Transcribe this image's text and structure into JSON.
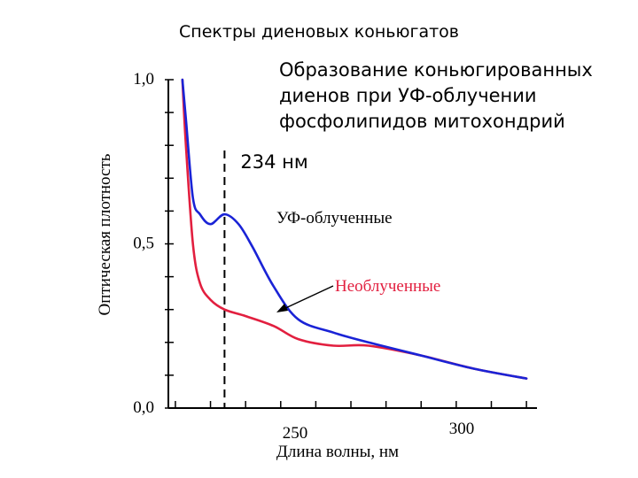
{
  "chart_data": {
    "type": "line",
    "title": "Спектры диеновых коньюгатов",
    "subtitle_lines": [
      "Образование коньюгированных",
      "диенов при УФ-облучении",
      "фосфолипидов митохондрий"
    ],
    "xlabel": "Длина волны, нм",
    "ylabel": "Оптическая плотность",
    "x_tick_labels": [
      "250",
      "300"
    ],
    "y_tick_labels": [
      "0,0",
      "0,5",
      "1,0"
    ],
    "xlim": [
      218,
      323
    ],
    "ylim": [
      0.0,
      1.0
    ],
    "marker": {
      "x": 234,
      "label": "234 нм"
    },
    "series": [
      {
        "name": "УФ-облученные",
        "color": "#1a23d6",
        "x": [
          222,
          223,
          225,
          227,
          230,
          234,
          238,
          242,
          248,
          255,
          265,
          275,
          290,
          305,
          320
        ],
        "y": [
          1.0,
          0.88,
          0.64,
          0.59,
          0.56,
          0.59,
          0.56,
          0.49,
          0.37,
          0.27,
          0.23,
          0.2,
          0.16,
          0.12,
          0.09
        ]
      },
      {
        "name": "Необлученные",
        "color": "#e21f3f",
        "x": [
          222,
          223,
          225,
          227,
          230,
          234,
          240,
          248,
          255,
          265,
          275,
          290,
          305,
          320
        ],
        "y": [
          1.0,
          0.8,
          0.5,
          0.38,
          0.33,
          0.3,
          0.28,
          0.25,
          0.21,
          0.19,
          0.19,
          0.16,
          0.12,
          0.09
        ]
      }
    ]
  }
}
